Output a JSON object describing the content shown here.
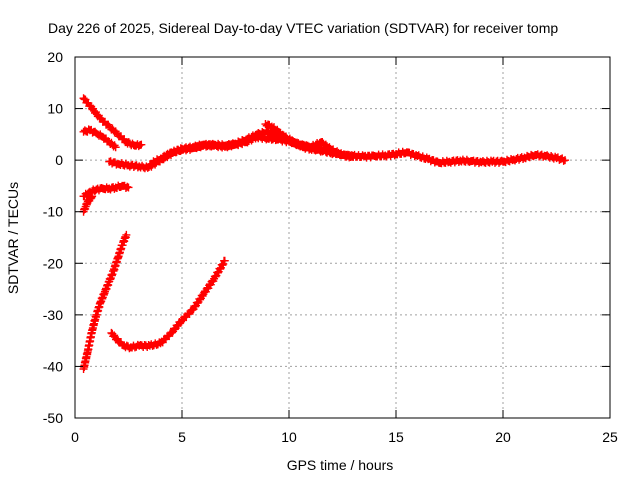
{
  "chart_data": {
    "type": "scatter",
    "title": "Day 226 of 2025, Sidereal Day-to-day VTEC variation (SDTVAR) for receiver tomp",
    "xlabel": "GPS time / hours",
    "ylabel": "SDTVAR / TECUs",
    "xlim": [
      0,
      25
    ],
    "ylim": [
      -50,
      20
    ],
    "xticks": [
      "0",
      "5",
      "10",
      "15",
      "20",
      "25"
    ],
    "yticks": [
      "20",
      "10",
      "0",
      "-10",
      "-20",
      "-30",
      "-40",
      "-50"
    ],
    "grid": true,
    "legend": "none",
    "marker_color": "#ff0000",
    "series": [
      {
        "x": [
          0.4,
          0.8,
          1.2,
          1.6,
          2.0,
          2.4,
          2.8,
          3.1
        ],
        "y": [
          12,
          10,
          8,
          6.5,
          5,
          3.5,
          2.8,
          3
        ]
      },
      {
        "x": [
          0.4,
          0.7,
          1.0,
          1.3,
          1.6,
          1.9
        ],
        "y": [
          5.5,
          5.8,
          5.2,
          4.5,
          3.5,
          2.5
        ]
      },
      {
        "x": [
          1.6,
          2.0,
          2.5,
          3.0,
          3.4,
          3.8,
          4.2,
          4.6,
          5.0,
          5.5,
          6.0,
          6.5,
          7.0,
          7.5,
          8.0,
          8.5,
          9.0,
          9.5,
          10.0,
          10.5,
          11.0,
          11.5,
          12.0,
          12.5,
          13.0,
          13.5,
          14.0,
          14.5,
          15.0,
          15.5,
          16.0,
          16.5,
          17.0,
          17.5,
          18.0,
          18.5,
          19.0,
          19.5,
          20.0,
          20.5,
          21.0,
          21.5,
          22.0,
          22.5,
          22.9
        ],
        "y": [
          -0.3,
          -0.7,
          -1,
          -1.2,
          -1.5,
          -0.5,
          0.5,
          1.5,
          2.2,
          2.5,
          3,
          2.8,
          2.6,
          3,
          3.5,
          4.5,
          4.2,
          4,
          3.6,
          3,
          2.5,
          2,
          1.5,
          1,
          0.8,
          0.7,
          0.8,
          0.9,
          1.2,
          1.5,
          0.8,
          0.2,
          -0.5,
          -0.3,
          -0.1,
          -0.2,
          -0.4,
          -0.3,
          -0.3,
          0.1,
          0.5,
          1,
          0.8,
          0.4,
          0
        ]
      },
      {
        "x": [
          3.5,
          4.0,
          4.5,
          5.0,
          5.5,
          6.0,
          6.5,
          7.0,
          7.5,
          8.0,
          8.5,
          9.0,
          9.5,
          10.0,
          10.5,
          11.0,
          11.5,
          12.0,
          12.5,
          13.0
        ],
        "y": [
          -0.8,
          0.3,
          1.5,
          2,
          2.3,
          2.8,
          3,
          2.8,
          3.2,
          4,
          5,
          5.5,
          4.8,
          3.8,
          3,
          2.5,
          3.5,
          2,
          1,
          0.6
        ]
      },
      {
        "x": [
          8.9,
          9.2,
          9.5,
          9.8,
          10.1,
          10.4,
          10.7,
          11.0,
          11.3,
          11.6,
          11.9,
          12.2
        ],
        "y": [
          7,
          6.5,
          5.5,
          4.5,
          3.8,
          3,
          2.5,
          2.2,
          2,
          1.8,
          1.5,
          1.2
        ]
      },
      {
        "x": [
          0.4,
          0.6,
          0.8,
          1.0,
          1.3,
          1.6,
          1.9,
          2.2,
          2.5
        ],
        "y": [
          -7,
          -6.5,
          -6,
          -5.7,
          -5.5,
          -5.5,
          -5.3,
          -5,
          -5.3
        ]
      },
      {
        "x": [
          0.4,
          0.5,
          0.6,
          0.7,
          0.8
        ],
        "y": [
          -10,
          -9,
          -8,
          -7.5,
          -7
        ]
      },
      {
        "x": [
          0.4,
          0.6,
          0.8,
          1.0,
          1.2,
          1.4,
          1.6,
          1.8,
          2.0,
          2.2,
          2.4
        ],
        "y": [
          -40.5,
          -37,
          -33,
          -30,
          -27.5,
          -25.5,
          -23.5,
          -21.5,
          -19,
          -16.5,
          -14.5
        ]
      },
      {
        "x": [
          1.7,
          2.0,
          2.3,
          2.6,
          3.0,
          3.5,
          4.0,
          4.5,
          5.0,
          5.5,
          6.0,
          6.5,
          7.0
        ],
        "y": [
          -33.5,
          -35,
          -36,
          -36.3,
          -36,
          -36,
          -35.5,
          -33.5,
          -31,
          -29,
          -26,
          -23,
          -19.5
        ]
      }
    ]
  }
}
